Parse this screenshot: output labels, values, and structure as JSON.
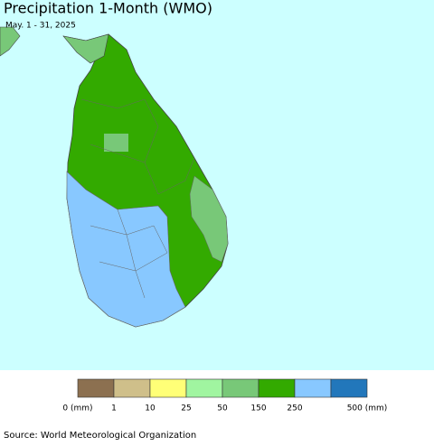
{
  "header": {
    "title": "Precipitation 1-Month (WMO)",
    "subtitle": "May. 1 - 31, 2025"
  },
  "legend": {
    "items": [
      {
        "label": "0 (mm)",
        "color": "#8c7050"
      },
      {
        "label": "1",
        "color": "#cfbf8a"
      },
      {
        "label": "10",
        "color": "#ffff77"
      },
      {
        "label": "25",
        "color": "#a0f5a0"
      },
      {
        "label": "50",
        "color": "#78c878"
      },
      {
        "label": "150",
        "color": "#33aa00"
      },
      {
        "label": "250",
        "color": "#88c8ff"
      },
      {
        "label": "500 (mm)",
        "color": "#2277bb"
      }
    ]
  },
  "footer": {
    "source": "Source: World Meteorological Organization"
  }
}
